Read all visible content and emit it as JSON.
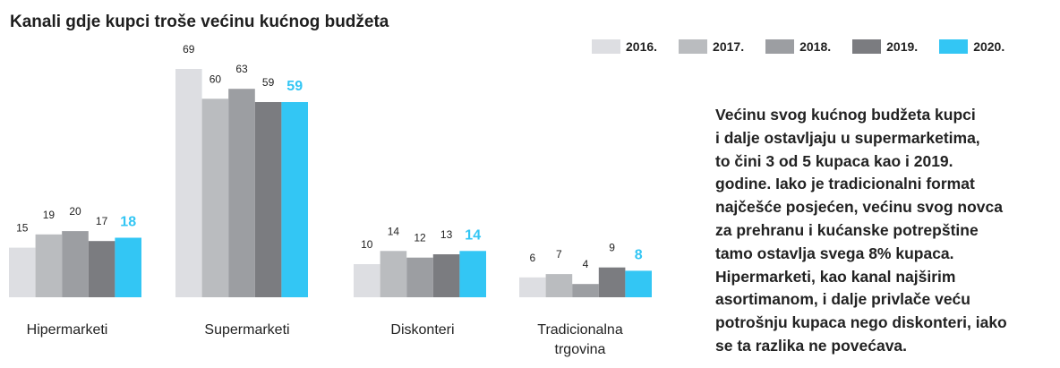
{
  "colors": {
    "series": [
      "#dddee2",
      "#babcbf",
      "#9c9ea2",
      "#7b7c80",
      "#33c6f4"
    ],
    "highlight_label": "#33c6f4",
    "value_label": "#222222"
  },
  "chart_data": {
    "type": "bar",
    "title": "Kanali gdje kupci troše većinu kućnog budžeta",
    "categories": [
      "Hipermarketi",
      "Supermarketi",
      "Diskonteri",
      "Tradicionalna\ntrgovina"
    ],
    "series": [
      {
        "name": "2016.",
        "values": [
          15,
          69,
          10,
          6
        ]
      },
      {
        "name": "2017.",
        "values": [
          19,
          60,
          14,
          7
        ]
      },
      {
        "name": "2018.",
        "values": [
          20,
          63,
          12,
          4
        ]
      },
      {
        "name": "2019.",
        "values": [
          17,
          59,
          13,
          9
        ]
      },
      {
        "name": "2020.",
        "values": [
          18,
          59,
          14,
          8
        ]
      }
    ],
    "ylim": [
      0,
      69
    ],
    "grid": false,
    "legend_position": "top-right",
    "data_labels": true
  },
  "description": "Većinu svog kućnog budžeta kupci\ni dalje ostavljaju u supermarketima,\nto čini 3 od 5 kupaca kao i 2019.\ngodine. Iako je tradicionalni format\nnajčešće posjećen, većinu svog novca\nza prehranu i kućanske potrepštine\ntamo ostavlja svega 8% kupaca.\nHipermarketi, kao kanal najširim\nasortimanom, i dalje privlače veću\npotrošnju kupaca nego diskonteri, iako\nse ta razlika ne povećava."
}
